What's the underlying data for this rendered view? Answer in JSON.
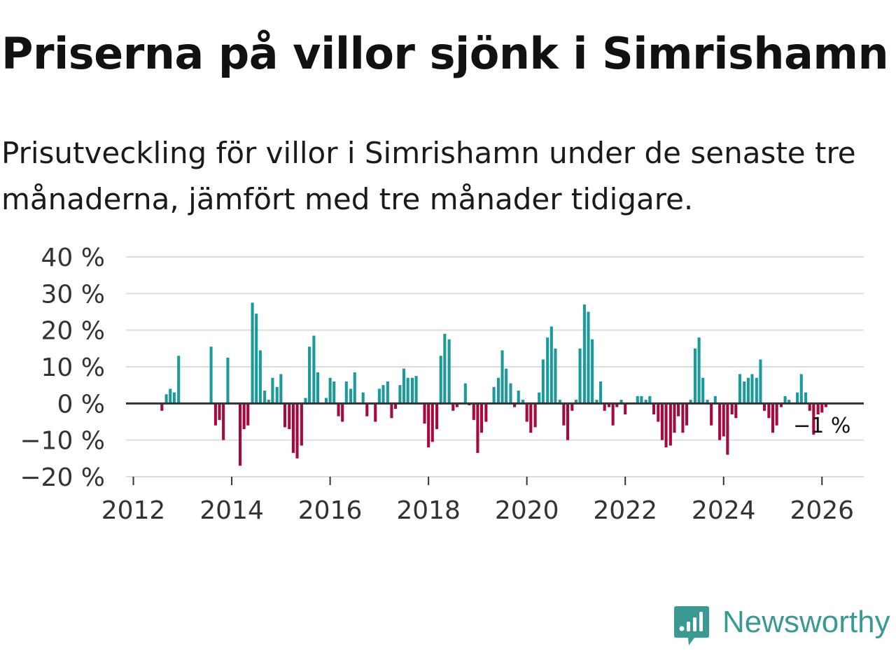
{
  "title": "Priserna på villor sjönk i Simrishamn",
  "subtitle": "Prisutveckling för villor i Simrishamn under de senaste tre månaderna, jämfört med tre månader tidigare.",
  "brand": {
    "name": "Newsworthy"
  },
  "colors": {
    "positive": "#1b9a9a",
    "negative": "#a5093f",
    "grid": "#dddddd",
    "axis": "#333333",
    "brand": "#3a9a93"
  },
  "chart_data": {
    "type": "bar",
    "title": "Priserna på villor sjönk i Simrishamn",
    "xlabel": "",
    "ylabel": "",
    "ylim": [
      -20,
      40
    ],
    "y_ticks": [
      {
        "value": 40,
        "label": "40 %"
      },
      {
        "value": 30,
        "label": "30 %"
      },
      {
        "value": 20,
        "label": "20 %"
      },
      {
        "value": 10,
        "label": "10 %"
      },
      {
        "value": 0,
        "label": "0 %"
      },
      {
        "value": -10,
        "label": "−10 %"
      },
      {
        "value": -20,
        "label": "−20 %"
      }
    ],
    "x_ticks": [
      {
        "value": 2012,
        "label": "2012"
      },
      {
        "value": 2014,
        "label": "2014"
      },
      {
        "value": 2016,
        "label": "2016"
      },
      {
        "value": 2018,
        "label": "2018"
      },
      {
        "value": 2020,
        "label": "2020"
      },
      {
        "value": 2022,
        "label": "2022"
      },
      {
        "value": 2024,
        "label": "2024"
      },
      {
        "value": 2026,
        "label": "2026"
      }
    ],
    "xlim": [
      2011.85,
      2026.85
    ],
    "annotation": {
      "label": "−1 %",
      "x": 2026.0
    },
    "series": [
      {
        "name": "Prisutveckling",
        "points": [
          [
            2012.58,
            -2
          ],
          [
            2012.67,
            2.5
          ],
          [
            2012.75,
            4
          ],
          [
            2012.83,
            3
          ],
          [
            2012.92,
            13
          ],
          [
            2013.58,
            15.5
          ],
          [
            2013.67,
            -6
          ],
          [
            2013.75,
            -4.5
          ],
          [
            2013.83,
            -10
          ],
          [
            2013.92,
            12.5
          ],
          [
            2014.17,
            -17
          ],
          [
            2014.25,
            -7
          ],
          [
            2014.33,
            -6
          ],
          [
            2014.42,
            27.5
          ],
          [
            2014.5,
            24.5
          ],
          [
            2014.58,
            14.5
          ],
          [
            2014.67,
            3.5
          ],
          [
            2014.75,
            1
          ],
          [
            2014.83,
            7
          ],
          [
            2014.92,
            4.5
          ],
          [
            2015.0,
            8
          ],
          [
            2015.08,
            -6.5
          ],
          [
            2015.17,
            -7
          ],
          [
            2015.25,
            -13.5
          ],
          [
            2015.33,
            -15
          ],
          [
            2015.42,
            -11.5
          ],
          [
            2015.5,
            1.5
          ],
          [
            2015.58,
            15.5
          ],
          [
            2015.67,
            18.5
          ],
          [
            2015.75,
            8.5
          ],
          [
            2015.92,
            1.5
          ],
          [
            2016.0,
            7
          ],
          [
            2016.08,
            6
          ],
          [
            2016.17,
            -3.5
          ],
          [
            2016.25,
            -5
          ],
          [
            2016.33,
            6
          ],
          [
            2016.42,
            4
          ],
          [
            2016.5,
            8.5
          ],
          [
            2016.67,
            3
          ],
          [
            2016.75,
            -3.5
          ],
          [
            2016.92,
            -5
          ],
          [
            2017.0,
            4
          ],
          [
            2017.08,
            5
          ],
          [
            2017.17,
            6
          ],
          [
            2017.25,
            -4
          ],
          [
            2017.33,
            -1.5
          ],
          [
            2017.42,
            5
          ],
          [
            2017.5,
            9.5
          ],
          [
            2017.58,
            7
          ],
          [
            2017.67,
            7
          ],
          [
            2017.75,
            7.5
          ],
          [
            2017.92,
            -5.5
          ],
          [
            2018.0,
            -12
          ],
          [
            2018.08,
            -10.5
          ],
          [
            2018.17,
            -7
          ],
          [
            2018.25,
            13
          ],
          [
            2018.33,
            19
          ],
          [
            2018.42,
            17.5
          ],
          [
            2018.5,
            -2
          ],
          [
            2018.58,
            -1
          ],
          [
            2018.75,
            5.5
          ],
          [
            2018.83,
            -0.5
          ],
          [
            2018.92,
            -4.5
          ],
          [
            2019.0,
            -13.5
          ],
          [
            2019.08,
            -8
          ],
          [
            2019.17,
            -5
          ],
          [
            2019.33,
            4.5
          ],
          [
            2019.42,
            7
          ],
          [
            2019.5,
            14.5
          ],
          [
            2019.58,
            9.5
          ],
          [
            2019.67,
            5.5
          ],
          [
            2019.75,
            -1
          ],
          [
            2019.83,
            3.5
          ],
          [
            2019.92,
            1
          ],
          [
            2020.0,
            -5
          ],
          [
            2020.08,
            -8
          ],
          [
            2020.17,
            -6.5
          ],
          [
            2020.25,
            3
          ],
          [
            2020.33,
            12
          ],
          [
            2020.42,
            18
          ],
          [
            2020.5,
            21
          ],
          [
            2020.58,
            15
          ],
          [
            2020.67,
            1
          ],
          [
            2020.75,
            -6
          ],
          [
            2020.83,
            -10
          ],
          [
            2020.92,
            -2
          ],
          [
            2021.0,
            1
          ],
          [
            2021.08,
            15
          ],
          [
            2021.17,
            27
          ],
          [
            2021.25,
            25
          ],
          [
            2021.33,
            17.5
          ],
          [
            2021.42,
            1
          ],
          [
            2021.5,
            6
          ],
          [
            2021.58,
            -2
          ],
          [
            2021.67,
            -1
          ],
          [
            2021.75,
            -6
          ],
          [
            2021.83,
            -1
          ],
          [
            2021.92,
            1
          ],
          [
            2022.0,
            -3
          ],
          [
            2022.25,
            2
          ],
          [
            2022.33,
            2
          ],
          [
            2022.42,
            1
          ],
          [
            2022.5,
            2
          ],
          [
            2022.58,
            -3
          ],
          [
            2022.67,
            -5
          ],
          [
            2022.75,
            -10
          ],
          [
            2022.83,
            -12
          ],
          [
            2022.92,
            -11.5
          ],
          [
            2023.0,
            -8
          ],
          [
            2023.08,
            -3.5
          ],
          [
            2023.17,
            -8
          ],
          [
            2023.25,
            -6
          ],
          [
            2023.33,
            1
          ],
          [
            2023.42,
            15
          ],
          [
            2023.5,
            18
          ],
          [
            2023.58,
            7
          ],
          [
            2023.67,
            1
          ],
          [
            2023.75,
            -6
          ],
          [
            2023.83,
            2
          ],
          [
            2023.92,
            -10
          ],
          [
            2024.0,
            -9
          ],
          [
            2024.08,
            -14
          ],
          [
            2024.17,
            -3
          ],
          [
            2024.25,
            -4
          ],
          [
            2024.33,
            8
          ],
          [
            2024.42,
            6
          ],
          [
            2024.5,
            7
          ],
          [
            2024.58,
            8
          ],
          [
            2024.67,
            7
          ],
          [
            2024.75,
            12
          ],
          [
            2024.83,
            -2
          ],
          [
            2024.92,
            -4
          ],
          [
            2025.0,
            -8
          ],
          [
            2025.08,
            -6
          ],
          [
            2025.17,
            -1
          ],
          [
            2025.25,
            2
          ],
          [
            2025.33,
            1
          ],
          [
            2025.5,
            3
          ],
          [
            2025.58,
            8
          ],
          [
            2025.67,
            3
          ],
          [
            2025.75,
            -2
          ],
          [
            2025.83,
            -8.5
          ],
          [
            2025.92,
            -3
          ],
          [
            2026.0,
            -2.5
          ],
          [
            2026.08,
            -1
          ]
        ]
      }
    ]
  }
}
